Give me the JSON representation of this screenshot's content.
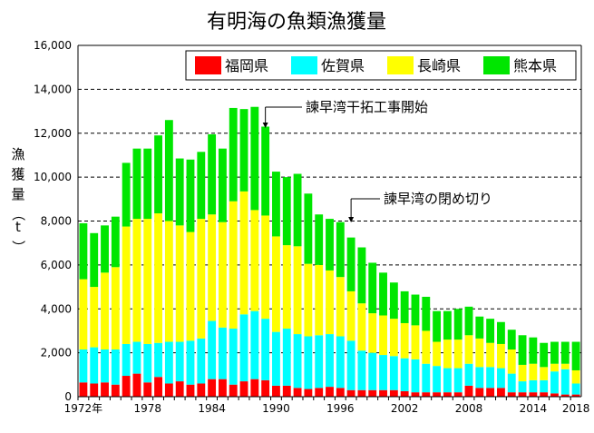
{
  "chart_data": {
    "type": "bar",
    "stacked": true,
    "title": "有明海の魚類漁獲量",
    "ylabel": "漁獲量（t）",
    "ylim": [
      0,
      16000
    ],
    "ytick_labels": [
      "0",
      "2,000",
      "4,000",
      "6,000",
      "8,000",
      "10,000",
      "12,000",
      "14,000",
      "16,000"
    ],
    "x": [
      1972,
      1973,
      1974,
      1975,
      1976,
      1977,
      1978,
      1979,
      1980,
      1981,
      1982,
      1983,
      1984,
      1985,
      1986,
      1987,
      1988,
      1989,
      1990,
      1991,
      1992,
      1993,
      1994,
      1995,
      1996,
      1997,
      1998,
      1999,
      2000,
      2001,
      2002,
      2003,
      2004,
      2005,
      2006,
      2007,
      2008,
      2009,
      2010,
      2011,
      2012,
      2013,
      2014,
      2015,
      2016,
      2017,
      2018
    ],
    "xtick_labels": [
      {
        "year": 1972,
        "label": "1972年"
      },
      {
        "year": 1978,
        "label": "1978"
      },
      {
        "year": 1984,
        "label": "1984"
      },
      {
        "year": 1990,
        "label": "1990"
      },
      {
        "year": 1996,
        "label": "1996"
      },
      {
        "year": 2002,
        "label": "2002"
      },
      {
        "year": 2008,
        "label": "2008"
      },
      {
        "year": 2014,
        "label": "2014"
      },
      {
        "year": 2018,
        "label": "2018"
      }
    ],
    "series": [
      {
        "name": "福岡県",
        "color": "#ff0000",
        "values": [
          650,
          600,
          650,
          550,
          950,
          1050,
          650,
          900,
          600,
          700,
          550,
          600,
          800,
          800,
          550,
          700,
          800,
          750,
          500,
          500,
          400,
          350,
          400,
          450,
          400,
          300,
          300,
          300,
          300,
          300,
          250,
          200,
          200,
          200,
          200,
          200,
          500,
          400,
          400,
          400,
          200,
          200,
          200,
          200,
          150,
          100,
          100
        ]
      },
      {
        "name": "佐賀県",
        "color": "#00ffff",
        "values": [
          1500,
          1650,
          1500,
          1600,
          1450,
          1450,
          1750,
          1550,
          1900,
          1800,
          2000,
          2050,
          2650,
          2350,
          2550,
          3050,
          3100,
          2800,
          2450,
          2600,
          2450,
          2400,
          2400,
          2400,
          2350,
          2250,
          1800,
          1700,
          1600,
          1550,
          1500,
          1500,
          1300,
          1200,
          1100,
          1100,
          1000,
          950,
          950,
          900,
          850,
          500,
          550,
          550,
          1000,
          1150,
          500
        ]
      },
      {
        "name": "長崎県",
        "color": "#ffff00",
        "values": [
          3200,
          2750,
          3500,
          3750,
          5350,
          5600,
          5700,
          5900,
          5500,
          5300,
          4950,
          5450,
          4850,
          4800,
          5800,
          5600,
          4600,
          4700,
          4350,
          3800,
          4000,
          3300,
          3200,
          2900,
          2700,
          2250,
          2150,
          1800,
          1800,
          1700,
          1600,
          1550,
          1500,
          1100,
          1300,
          1300,
          1300,
          1300,
          1100,
          1100,
          1100,
          750,
          750,
          600,
          350,
          250,
          600
        ]
      },
      {
        "name": "熊本県",
        "color": "#00e600",
        "values": [
          2550,
          2450,
          2150,
          2300,
          2900,
          3200,
          3200,
          3550,
          4600,
          3050,
          3300,
          3050,
          3650,
          3350,
          4250,
          3750,
          4700,
          4050,
          2950,
          3100,
          3300,
          3200,
          2300,
          2350,
          2500,
          2450,
          2550,
          2300,
          1950,
          1650,
          1450,
          1400,
          1550,
          1400,
          1300,
          1400,
          1300,
          1000,
          1100,
          1000,
          900,
          1350,
          1200,
          1100,
          1000,
          1000,
          1300
        ]
      }
    ],
    "annotations": [
      {
        "text": "諫早湾干拓工事開始",
        "year": 1989
      },
      {
        "text": "諫早湾の閉め切り",
        "year": 1997
      }
    ],
    "legend_position": "top-right",
    "grid": "horizontal-dashed"
  }
}
